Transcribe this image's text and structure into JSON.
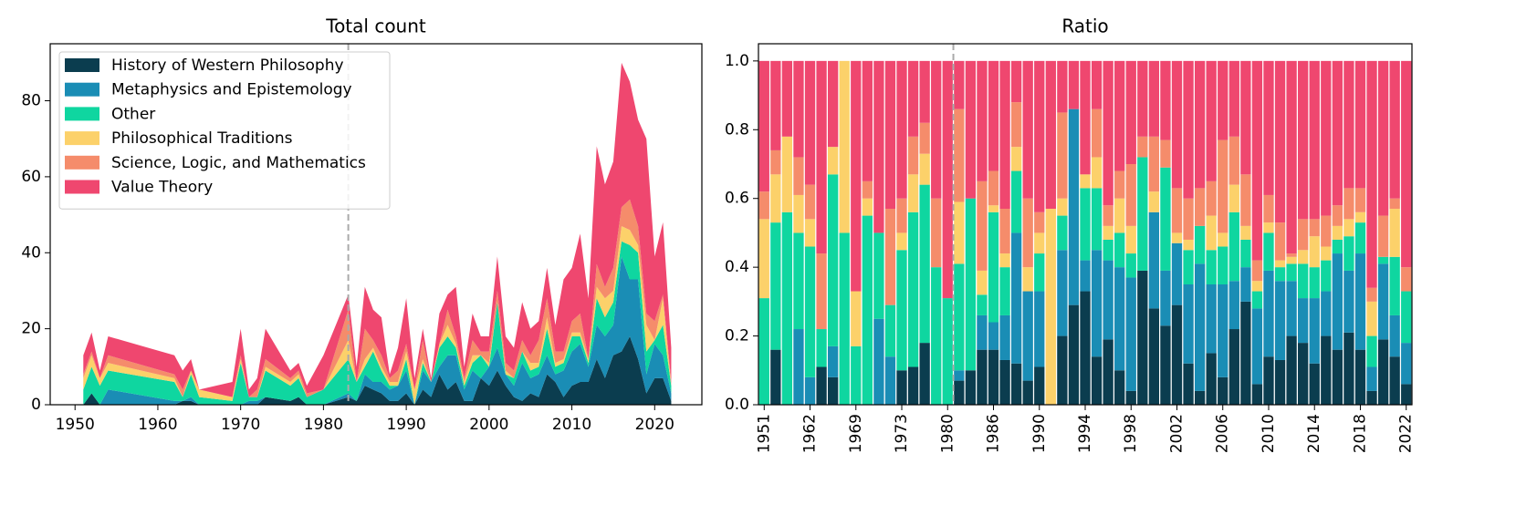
{
  "chart_data": [
    {
      "type": "area",
      "title": "Total count",
      "stacked": true,
      "legend": "upper left",
      "vline": 1983,
      "x": [
        1951,
        1952,
        1953,
        1954,
        1962,
        1963,
        1964,
        1965,
        1969,
        1970,
        1971,
        1972,
        1973,
        1976,
        1977,
        1978,
        1980,
        1983,
        1984,
        1985,
        1986,
        1987,
        1988,
        1989,
        1990,
        1991,
        1992,
        1993,
        1994,
        1995,
        1996,
        1997,
        1998,
        1999,
        2000,
        2001,
        2002,
        2003,
        2004,
        2005,
        2006,
        2007,
        2008,
        2009,
        2010,
        2011,
        2012,
        2013,
        2014,
        2015,
        2016,
        2017,
        2018,
        2019,
        2020,
        2021,
        2022
      ],
      "xlim": [
        1947,
        2025.7
      ],
      "xticks": [
        1950,
        1960,
        1970,
        1980,
        1990,
        2000,
        2010,
        2020
      ],
      "ylim": [
        0,
        95
      ],
      "yticks": [
        0,
        20,
        40,
        60,
        80
      ],
      "series": [
        {
          "name": "History of Western Philosophy",
          "color": "#0b3d4f",
          "values": [
            0,
            3,
            0,
            0,
            0,
            1,
            1,
            0,
            0,
            0,
            0,
            0,
            2,
            1,
            2,
            0,
            0,
            2,
            1,
            5,
            4,
            3,
            1,
            1,
            3,
            0,
            4,
            2,
            8,
            4,
            6,
            1,
            1,
            7,
            5,
            9,
            5,
            2,
            1,
            3,
            2,
            8,
            6,
            2,
            5,
            6,
            6,
            12,
            7,
            13,
            14,
            18,
            12,
            3,
            7,
            7,
            1
          ]
        },
        {
          "name": "Metaphysics and Epistemology",
          "color": "#1a8db5",
          "values": [
            0,
            0,
            0,
            4,
            1,
            0,
            1,
            0,
            0,
            0,
            1,
            1,
            0,
            0,
            0,
            0,
            0,
            1,
            0,
            3,
            2,
            3,
            3,
            4,
            6,
            0,
            5,
            4,
            2,
            9,
            7,
            3,
            8,
            0,
            5,
            6,
            3,
            3,
            10,
            4,
            6,
            5,
            2,
            7,
            9,
            10,
            4,
            9,
            11,
            8,
            25,
            15,
            21,
            5,
            9,
            6,
            2
          ]
        },
        {
          "name": "Other",
          "color": "#0fd6a0",
          "values": [
            4,
            7,
            5,
            5,
            5,
            1,
            6,
            2,
            1,
            11,
            1,
            1,
            7,
            4,
            5,
            2,
            4,
            9,
            5,
            2,
            8,
            3,
            1,
            0,
            3,
            0,
            2,
            0,
            5,
            5,
            2,
            1,
            2,
            6,
            0,
            12,
            0,
            2,
            3,
            2,
            2,
            7,
            2,
            2,
            4,
            2,
            1,
            7,
            5,
            6,
            4,
            9,
            7,
            6,
            1,
            8,
            2
          ]
        },
        {
          "name": "Philosophical Traditions",
          "color": "#fcd16a",
          "values": [
            3,
            3,
            2,
            2,
            1,
            0,
            1,
            2,
            1,
            1,
            0,
            0,
            1,
            1,
            1,
            0,
            0,
            5,
            0,
            2,
            1,
            1,
            1,
            1,
            2,
            4,
            1,
            0,
            1,
            3,
            1,
            1,
            2,
            0,
            1,
            0,
            1,
            0,
            0,
            2,
            1,
            3,
            1,
            1,
            1,
            1,
            1,
            3,
            5,
            3,
            4,
            4,
            2,
            7,
            0,
            7,
            0
          ]
        },
        {
          "name": "Science, Logic, and Mathematics",
          "color": "#f58c6b",
          "values": [
            1,
            1,
            0,
            2,
            1,
            2,
            0,
            0,
            0,
            1,
            0,
            2,
            2,
            1,
            1,
            1,
            0,
            8,
            0,
            8,
            2,
            3,
            1,
            3,
            2,
            0,
            5,
            0,
            0,
            4,
            2,
            1,
            4,
            1,
            3,
            3,
            2,
            2,
            3,
            2,
            6,
            5,
            3,
            2,
            3,
            5,
            0,
            6,
            3,
            6,
            5,
            8,
            5,
            3,
            5,
            1,
            1
          ]
        },
        {
          "name": "Value Theory",
          "color": "#ef476f",
          "values": [
            5,
            5,
            2,
            5,
            5,
            5,
            3,
            0,
            4,
            7,
            2,
            3,
            8,
            2,
            2,
            2,
            9,
            4,
            4,
            11,
            8,
            10,
            1,
            6,
            12,
            3,
            3,
            1,
            8,
            4,
            13,
            3,
            7,
            4,
            4,
            9,
            7,
            6,
            10,
            7,
            5,
            8,
            7,
            19,
            14,
            21,
            16,
            31,
            27,
            28,
            38,
            31,
            28,
            46,
            17,
            19,
            9
          ]
        }
      ]
    },
    {
      "type": "bar",
      "title": "Ratio",
      "stacked": true,
      "vline": 1983,
      "categories": [
        "1951",
        null,
        null,
        null,
        "1962",
        null,
        null,
        null,
        "1969",
        null,
        null,
        null,
        "1973",
        null,
        null,
        null,
        "1980",
        null,
        null,
        null,
        "1986",
        null,
        null,
        null,
        "1990",
        null,
        null,
        null,
        "1994",
        null,
        null,
        null,
        "1998",
        null,
        null,
        null,
        "2002",
        null,
        null,
        null,
        "2006",
        null,
        null,
        null,
        "2010",
        null,
        null,
        null,
        "2014",
        null,
        null,
        null,
        "2018",
        null,
        null,
        null,
        "2022"
      ],
      "ylim": [
        0,
        1.05
      ],
      "yticks": [
        {
          "value": 0,
          "label": "0.0"
        },
        0.2,
        0.4,
        0.6,
        0.8,
        {
          "value": 1,
          "label": "1.0"
        }
      ],
      "series": [
        {
          "color": "#0b3d4f",
          "values": [
            0,
            0.16,
            0,
            0,
            0,
            0.11,
            0.08,
            0,
            0,
            0,
            0,
            0,
            0.1,
            0.11,
            0.18,
            0,
            0,
            0.07,
            0.1,
            0.16,
            0.16,
            0.13,
            0.12,
            0.07,
            0.11,
            0,
            0.2,
            0.29,
            0.33,
            0.14,
            0.19,
            0.1,
            0.04,
            0.39,
            0.28,
            0.23,
            0.29,
            0.12,
            0.04,
            0.15,
            0.08,
            0.22,
            0.3,
            0.06,
            0.14,
            0.13,
            0.2,
            0.18,
            0.12,
            0.2,
            0.16,
            0.21,
            0.16,
            0.04,
            0.19,
            0.14,
            0.06
          ]
        },
        {
          "color": "#1a8db5",
          "values": [
            0,
            0,
            0,
            0.22,
            0.08,
            0,
            0.09,
            0,
            0,
            0,
            0.25,
            0.14,
            0,
            0,
            0,
            0,
            0,
            0.03,
            0,
            0.1,
            0.08,
            0.13,
            0.38,
            0.26,
            0.22,
            0,
            0.25,
            0.57,
            0.09,
            0.31,
            0.23,
            0.3,
            0.33,
            0,
            0.28,
            0.16,
            0.18,
            0.23,
            0.37,
            0.2,
            0.27,
            0.14,
            0.1,
            0.22,
            0.25,
            0.23,
            0.16,
            0.13,
            0.19,
            0.13,
            0.28,
            0.18,
            0.28,
            0.07,
            0.22,
            0.12,
            0.12
          ]
        },
        {
          "color": "#0fd6a0",
          "values": [
            0.31,
            0.37,
            0.56,
            0.28,
            0.38,
            0.11,
            0.5,
            0.5,
            0.17,
            0.55,
            0.25,
            0.15,
            0.35,
            0.45,
            0.46,
            0.4,
            0.31,
            0.31,
            0.5,
            0.06,
            0.32,
            0.14,
            0.18,
            0,
            0.11,
            0,
            0.1,
            0,
            0.21,
            0.18,
            0.06,
            0.1,
            0.07,
            0.33,
            0,
            0.3,
            0,
            0.1,
            0.11,
            0.1,
            0.11,
            0.2,
            0.08,
            0.05,
            0.11,
            0.04,
            0.05,
            0.1,
            0.09,
            0.09,
            0.04,
            0.1,
            0.09,
            0.09,
            0.02,
            0.17,
            0.15
          ]
        },
        {
          "color": "#fcd16a",
          "values": [
            0.23,
            0.14,
            0.22,
            0.11,
            0.08,
            0,
            0.08,
            0.5,
            0.16,
            0.05,
            0,
            0,
            0.05,
            0.11,
            0.09,
            0,
            0,
            0.18,
            0,
            0.07,
            0.02,
            0.04,
            0.07,
            0.07,
            0.06,
            0.57,
            0.05,
            0,
            0.04,
            0.09,
            0.04,
            0.1,
            0.08,
            0,
            0.06,
            0,
            0.03,
            0.03,
            0,
            0.1,
            0.04,
            0.08,
            0.04,
            0.03,
            0.03,
            0.02,
            0.02,
            0.04,
            0.09,
            0.04,
            0.04,
            0.05,
            0.03,
            0.1,
            0,
            0.14,
            0
          ]
        },
        {
          "color": "#f58c6b",
          "values": [
            0.08,
            0.07,
            0,
            0.11,
            0.1,
            0.22,
            0,
            0,
            0,
            0.05,
            0,
            0.28,
            0.1,
            0.11,
            0.09,
            0.2,
            0,
            0.27,
            0,
            0.26,
            0.1,
            0.13,
            0.13,
            0.2,
            0.06,
            0,
            0.25,
            0,
            0,
            0.14,
            0.06,
            0.08,
            0.18,
            0.06,
            0.16,
            0.08,
            0.13,
            0.12,
            0.11,
            0.1,
            0.27,
            0.14,
            0.15,
            0.06,
            0.08,
            0.11,
            0.01,
            0.09,
            0.05,
            0.09,
            0.06,
            0.09,
            0.07,
            0.04,
            0.12,
            0.03,
            0.07
          ]
        },
        {
          "color": "#ef476f",
          "values": [
            0.38,
            0.26,
            0.22,
            0.28,
            0.36,
            0.56,
            0.25,
            0,
            0.67,
            0.35,
            0.5,
            0.43,
            0.4,
            0.22,
            0.18,
            0.4,
            0.69,
            0.14,
            0.4,
            0.35,
            0.32,
            0.43,
            0.12,
            0.4,
            0.44,
            0.43,
            0.15,
            0.14,
            0.33,
            0.14,
            0.42,
            0.32,
            0.3,
            0.22,
            0.22,
            0.23,
            0.37,
            0.4,
            0.37,
            0.35,
            0.23,
            0.22,
            0.33,
            0.58,
            0.39,
            0.47,
            0.56,
            0.46,
            0.46,
            0.45,
            0.42,
            0.37,
            0.37,
            0.66,
            0.45,
            0.4,
            0.6
          ]
        }
      ]
    }
  ]
}
